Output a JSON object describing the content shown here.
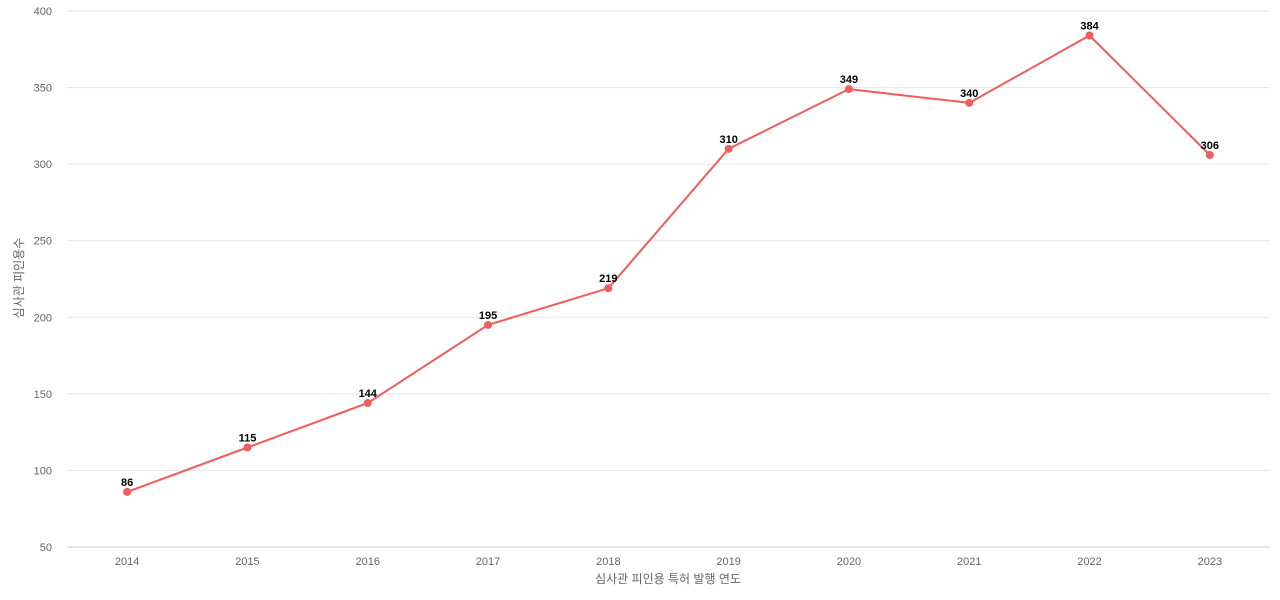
{
  "chart_data": {
    "type": "line",
    "title": "",
    "xlabel": "심사관 피인용 특허 발행 연도",
    "ylabel": "심사관 피인용수",
    "categories": [
      "2014",
      "2015",
      "2016",
      "2017",
      "2018",
      "2019",
      "2020",
      "2021",
      "2022",
      "2023"
    ],
    "series": [
      {
        "values": [
          86,
          115,
          144,
          195,
          219,
          310,
          349,
          340,
          384,
          306
        ],
        "color": "#f15c5c"
      }
    ],
    "ylim": [
      50,
      400
    ],
    "yticks": [
      50,
      100,
      150,
      200,
      250,
      300,
      350,
      400
    ],
    "grid": true,
    "data_labels": true,
    "legend": "none"
  }
}
